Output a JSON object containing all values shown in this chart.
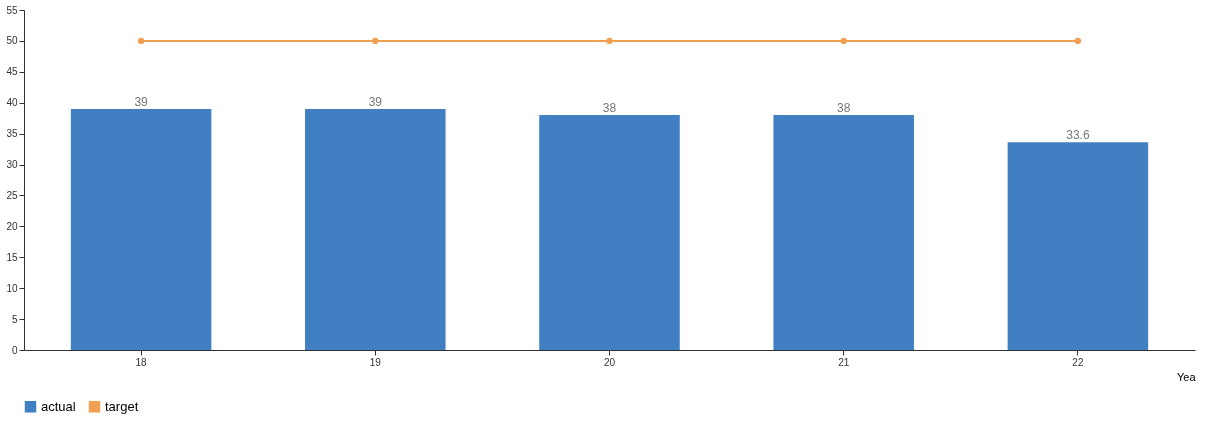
{
  "chart_data": {
    "type": "bar",
    "categories": [
      "18",
      "19",
      "20",
      "21",
      "22"
    ],
    "xlabel": "Yea",
    "series": [
      {
        "name": "actual",
        "color": "#3f7fc2",
        "values": [
          39,
          39,
          38,
          38,
          33.6
        ],
        "value_labels": [
          "39",
          "39",
          "38",
          "38",
          "33.6"
        ]
      },
      {
        "name": "target",
        "type": "line",
        "color": "#f0a050",
        "values": [
          50,
          50,
          50,
          50,
          50
        ]
      }
    ],
    "ylim": [
      0,
      55
    ],
    "yticks": [
      0,
      5,
      10,
      15,
      20,
      25,
      30,
      35,
      40,
      45,
      50,
      55
    ],
    "legend": "bottom",
    "grid": false,
    "marker": "circle"
  }
}
